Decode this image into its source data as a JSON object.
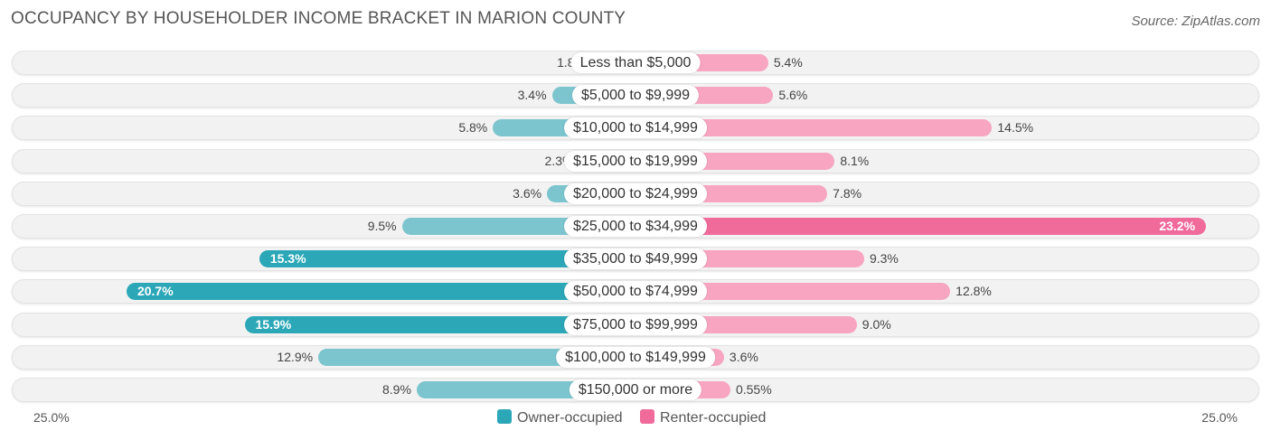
{
  "header": {
    "title": "OCCUPANCY BY HOUSEHOLDER INCOME BRACKET IN MARION COUNTY",
    "source": "Source: ZipAtlas.com"
  },
  "colors": {
    "owner": "#7cc5ce",
    "owner_strong": "#2ba7b7",
    "renter": "#f7a5c0",
    "renter_strong": "#f06a9a"
  },
  "chart_data": {
    "type": "bar",
    "orientation": "horizontal-diverging",
    "title": "OCCUPANCY BY HOUSEHOLDER INCOME BRACKET IN MARION COUNTY",
    "categories": [
      "Less than $5,000",
      "$5,000 to $9,999",
      "$10,000 to $14,999",
      "$15,000 to $19,999",
      "$20,000 to $24,999",
      "$25,000 to $34,999",
      "$35,000 to $49,999",
      "$50,000 to $74,999",
      "$75,000 to $99,999",
      "$100,000 to $149,999",
      "$150,000 or more"
    ],
    "series": [
      {
        "name": "Owner-occupied",
        "values": [
          1.8,
          3.4,
          5.8,
          2.3,
          3.6,
          9.5,
          15.3,
          20.7,
          15.9,
          12.9,
          8.9
        ],
        "labels": [
          "1.8%",
          "3.4%",
          "5.8%",
          "2.3%",
          "3.6%",
          "9.5%",
          "15.3%",
          "20.7%",
          "15.9%",
          "12.9%",
          "8.9%"
        ]
      },
      {
        "name": "Renter-occupied",
        "values": [
          5.4,
          5.6,
          14.5,
          8.1,
          7.8,
          23.2,
          9.3,
          12.8,
          9.0,
          3.6,
          0.55
        ],
        "labels": [
          "5.4%",
          "5.6%",
          "14.5%",
          "8.1%",
          "7.8%",
          "23.2%",
          "9.3%",
          "12.8%",
          "9.0%",
          "3.6%",
          "0.55%"
        ]
      }
    ],
    "axis": {
      "max": 25.0,
      "left_label": "25.0%",
      "right_label": "25.0%"
    },
    "legend": [
      "Owner-occupied",
      "Renter-occupied"
    ]
  }
}
